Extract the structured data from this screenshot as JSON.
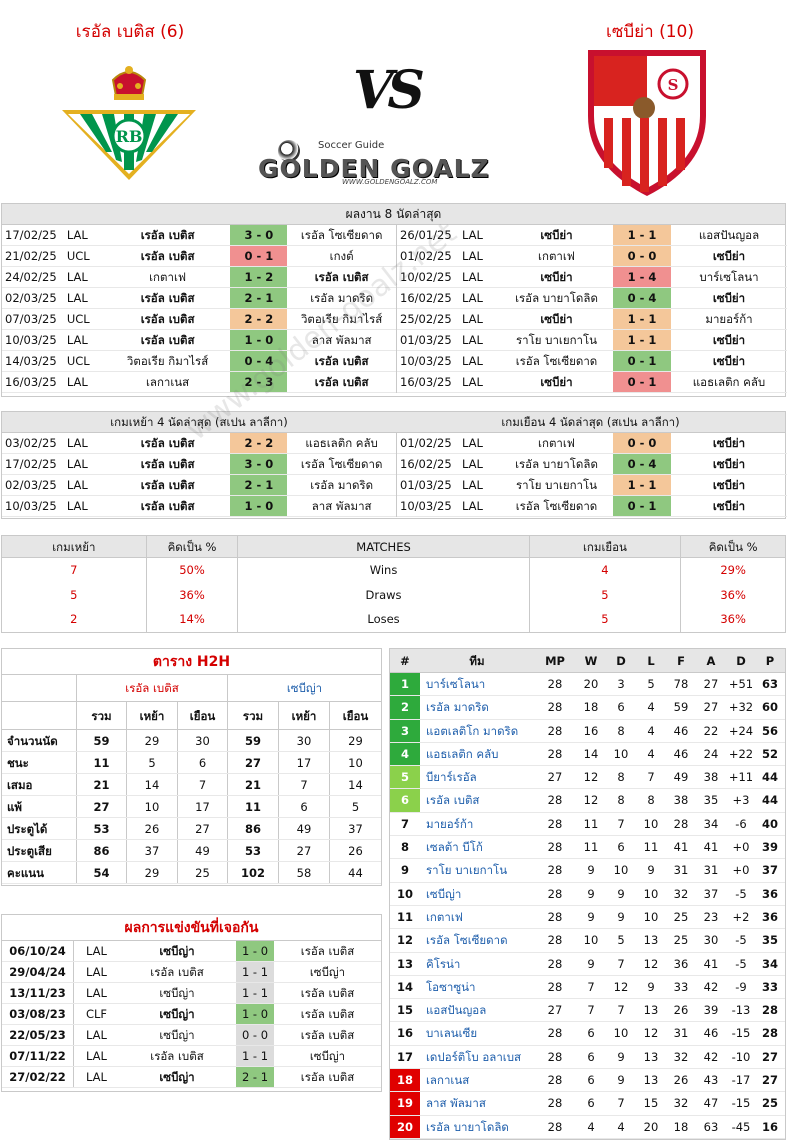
{
  "home": {
    "name": "เรอัล เบติส (6)",
    "short": "เรอัล เบติส"
  },
  "away": {
    "name": "เซบีย่า (10)",
    "short": "เซบีย่า"
  },
  "vs": "VS",
  "brand": {
    "small": "Soccer Guide",
    "big": "GOLDEN GOALZ",
    "url": "WWW.GOLDENGOALZ.COM"
  },
  "watermark": "www.golden-goalz.net",
  "last8": {
    "title": "ผลงาน 8 นัดล่าสุด",
    "home": [
      [
        "17/02/25",
        "LAL",
        "เรอัล เบติส",
        "3 - 0",
        "เรอัล โซเซียดาด",
        "w",
        "h"
      ],
      [
        "21/02/25",
        "UCL",
        "เรอัล เบติส",
        "0 - 1",
        "เกงต์",
        "l",
        "h"
      ],
      [
        "24/02/25",
        "LAL",
        "เกตาเฟ",
        "1 - 2",
        "เรอัล เบติส",
        "w",
        "a"
      ],
      [
        "02/03/25",
        "LAL",
        "เรอัล เบติส",
        "2 - 1",
        "เรอัล มาดริด",
        "w",
        "h"
      ],
      [
        "07/03/25",
        "UCL",
        "เรอัล เบติส",
        "2 - 2",
        "วิตอเรีย กิมาไรส์",
        "d",
        "h"
      ],
      [
        "10/03/25",
        "LAL",
        "เรอัล เบติส",
        "1 - 0",
        "ลาส พัลมาส",
        "w",
        "h"
      ],
      [
        "14/03/25",
        "UCL",
        "วิตอเรีย กิมาไรส์",
        "0 - 4",
        "เรอัล เบติส",
        "w",
        "a"
      ],
      [
        "16/03/25",
        "LAL",
        "เลกาเนส",
        "2 - 3",
        "เรอัล เบติส",
        "w",
        "a"
      ]
    ],
    "away": [
      [
        "26/01/25",
        "LAL",
        "เซบีย่า",
        "1 - 1",
        "แอสปันญอล",
        "d",
        "h"
      ],
      [
        "01/02/25",
        "LAL",
        "เกตาเฟ",
        "0 - 0",
        "เซบีย่า",
        "d",
        "a"
      ],
      [
        "10/02/25",
        "LAL",
        "เซบีย่า",
        "1 - 4",
        "บาร์เซโลนา",
        "l",
        "h"
      ],
      [
        "16/02/25",
        "LAL",
        "เรอัล บายาโดลิด",
        "0 - 4",
        "เซบีย่า",
        "w",
        "a"
      ],
      [
        "25/02/25",
        "LAL",
        "เซบีย่า",
        "1 - 1",
        "มายอร์ก้า",
        "d",
        "h"
      ],
      [
        "01/03/25",
        "LAL",
        "ราโย บาเยกาโน",
        "1 - 1",
        "เซบีย่า",
        "d",
        "a"
      ],
      [
        "10/03/25",
        "LAL",
        "เรอัล โซเซียดาด",
        "0 - 1",
        "เซบีย่า",
        "w",
        "a"
      ],
      [
        "16/03/25",
        "LAL",
        "เซบีย่า",
        "0 - 1",
        "แอธเลติก คลับ",
        "l",
        "h"
      ]
    ]
  },
  "last4": {
    "home_title": "เกมเหย้า 4 นัดล่าสุด (สเปน ลาลีกา)",
    "away_title": "เกมเยือน 4 นัดล่าสุด (สเปน ลาลีกา)",
    "home": [
      [
        "03/02/25",
        "LAL",
        "เรอัล เบติส",
        "2 - 2",
        "แอธเลติก คลับ",
        "d",
        "h"
      ],
      [
        "17/02/25",
        "LAL",
        "เรอัล เบติส",
        "3 - 0",
        "เรอัล โซเซียดาด",
        "w",
        "h"
      ],
      [
        "02/03/25",
        "LAL",
        "เรอัล เบติส",
        "2 - 1",
        "เรอัล มาดริด",
        "w",
        "h"
      ],
      [
        "10/03/25",
        "LAL",
        "เรอัล เบติส",
        "1 - 0",
        "ลาส พัลมาส",
        "w",
        "h"
      ]
    ],
    "away": [
      [
        "01/02/25",
        "LAL",
        "เกตาเฟ",
        "0 - 0",
        "เซบีย่า",
        "d",
        "a"
      ],
      [
        "16/02/25",
        "LAL",
        "เรอัล บายาโดลิด",
        "0 - 4",
        "เซบีย่า",
        "w",
        "a"
      ],
      [
        "01/03/25",
        "LAL",
        "ราโย บาเยกาโน",
        "1 - 1",
        "เซบีย่า",
        "d",
        "a"
      ],
      [
        "10/03/25",
        "LAL",
        "เรอัล โซเซียดาด",
        "0 - 1",
        "เซบีย่า",
        "w",
        "a"
      ]
    ]
  },
  "matches": {
    "headers": [
      "เกมเหย้า",
      "คิดเป็น %",
      "MATCHES",
      "เกมเยือน",
      "คิดเป็น %"
    ],
    "rows": [
      [
        "7",
        "50%",
        "Wins",
        "4",
        "29%"
      ],
      [
        "5",
        "36%",
        "Draws",
        "5",
        "36%"
      ],
      [
        "2",
        "14%",
        "Loses",
        "5",
        "36%"
      ]
    ]
  },
  "h2h": {
    "title": "ตาราง H2H",
    "home": "เรอัล เบติส",
    "away": "เซบีญ่า",
    "sub": [
      "รวม",
      "เหย้า",
      "เยือน",
      "รวม",
      "เหย้า",
      "เยือน"
    ],
    "rows": [
      [
        "จำนวนนัด",
        "59",
        "29",
        "30",
        "59",
        "30",
        "29"
      ],
      [
        "ชนะ",
        "11",
        "5",
        "6",
        "27",
        "17",
        "10"
      ],
      [
        "เสมอ",
        "21",
        "14",
        "7",
        "21",
        "7",
        "14"
      ],
      [
        "แพ้",
        "27",
        "10",
        "17",
        "11",
        "6",
        "5"
      ],
      [
        "ประตูได้",
        "53",
        "26",
        "27",
        "86",
        "49",
        "37"
      ],
      [
        "ประตูเสีย",
        "86",
        "37",
        "49",
        "53",
        "27",
        "26"
      ],
      [
        "คะแนน",
        "54",
        "29",
        "25",
        "102",
        "58",
        "44"
      ]
    ]
  },
  "results": {
    "title": "ผลการแข่งขันที่เจอกัน",
    "rows": [
      [
        "06/10/24",
        "LAL",
        "เซบีญ่า",
        "1 - 0",
        "เรอัล เบติส",
        "a"
      ],
      [
        "29/04/24",
        "LAL",
        "เรอัล เบติส",
        "1 - 1",
        "เซบีญ่า",
        "d"
      ],
      [
        "13/11/23",
        "LAL",
        "เซบีญ่า",
        "1 - 1",
        "เรอัล เบติส",
        "d"
      ],
      [
        "03/08/23",
        "CLF",
        "เซบีญ่า",
        "1 - 0",
        "เรอัล เบติส",
        "a"
      ],
      [
        "22/05/23",
        "LAL",
        "เซบีญ่า",
        "0 - 0",
        "เรอัล เบติส",
        "d"
      ],
      [
        "07/11/22",
        "LAL",
        "เรอัล เบติส",
        "1 - 1",
        "เซบีญ่า",
        "d"
      ],
      [
        "27/02/22",
        "LAL",
        "เซบีญ่า",
        "2 - 1",
        "เรอัล เบติส",
        "a"
      ]
    ]
  },
  "table": {
    "headers": [
      "#",
      "ทีม",
      "MP",
      "W",
      "D",
      "L",
      "F",
      "A",
      "D",
      "P"
    ],
    "rows": [
      [
        "1",
        "บาร์เซโลนา",
        "28",
        "20",
        "3",
        "5",
        "78",
        "27",
        "+51",
        "63",
        "#2eaa3c"
      ],
      [
        "2",
        "เรอัล มาดริด",
        "28",
        "18",
        "6",
        "4",
        "59",
        "27",
        "+32",
        "60",
        "#2eaa3c"
      ],
      [
        "3",
        "แอตเลติโก มาดริด",
        "28",
        "16",
        "8",
        "4",
        "46",
        "22",
        "+24",
        "56",
        "#2eaa3c"
      ],
      [
        "4",
        "แอธเลติก คลับ",
        "28",
        "14",
        "10",
        "4",
        "46",
        "24",
        "+22",
        "52",
        "#2eaa3c"
      ],
      [
        "5",
        "บียาร์เรอัล",
        "27",
        "12",
        "8",
        "7",
        "49",
        "38",
        "+11",
        "44",
        "#8bd14b"
      ],
      [
        "6",
        "เรอัล เบติส",
        "28",
        "12",
        "8",
        "8",
        "38",
        "35",
        "+3",
        "44",
        "#8bd14b"
      ],
      [
        "7",
        "มายอร์ก้า",
        "28",
        "11",
        "7",
        "10",
        "28",
        "34",
        "-6",
        "40",
        ""
      ],
      [
        "8",
        "เซลต้า บีโก้",
        "28",
        "11",
        "6",
        "11",
        "41",
        "41",
        "+0",
        "39",
        ""
      ],
      [
        "9",
        "ราโย บาเยกาโน",
        "28",
        "9",
        "10",
        "9",
        "31",
        "31",
        "+0",
        "37",
        ""
      ],
      [
        "10",
        "เซบีญ่า",
        "28",
        "9",
        "9",
        "10",
        "32",
        "37",
        "-5",
        "36",
        ""
      ],
      [
        "11",
        "เกตาเฟ",
        "28",
        "9",
        "9",
        "10",
        "25",
        "23",
        "+2",
        "36",
        ""
      ],
      [
        "12",
        "เรอัล โซเซียดาด",
        "28",
        "10",
        "5",
        "13",
        "25",
        "30",
        "-5",
        "35",
        ""
      ],
      [
        "13",
        "คิโรน่า",
        "28",
        "9",
        "7",
        "12",
        "36",
        "41",
        "-5",
        "34",
        ""
      ],
      [
        "14",
        "โอซาซูน่า",
        "28",
        "7",
        "12",
        "9",
        "33",
        "42",
        "-9",
        "33",
        ""
      ],
      [
        "15",
        "แอสปันญอล",
        "27",
        "7",
        "7",
        "13",
        "26",
        "39",
        "-13",
        "28",
        ""
      ],
      [
        "16",
        "บาเลนเซีย",
        "28",
        "6",
        "10",
        "12",
        "31",
        "46",
        "-15",
        "28",
        ""
      ],
      [
        "17",
        "เดปอร์ติโบ อลาเบส",
        "28",
        "6",
        "9",
        "13",
        "32",
        "42",
        "-10",
        "27",
        ""
      ],
      [
        "18",
        "เลกาเนส",
        "28",
        "6",
        "9",
        "13",
        "26",
        "43",
        "-17",
        "27",
        "#e00000"
      ],
      [
        "19",
        "ลาส พัลมาส",
        "28",
        "6",
        "7",
        "15",
        "32",
        "47",
        "-15",
        "25",
        "#e00000"
      ],
      [
        "20",
        "เรอัล บายาโดลิด",
        "28",
        "4",
        "4",
        "20",
        "18",
        "63",
        "-45",
        "16",
        "#e00000"
      ]
    ]
  }
}
